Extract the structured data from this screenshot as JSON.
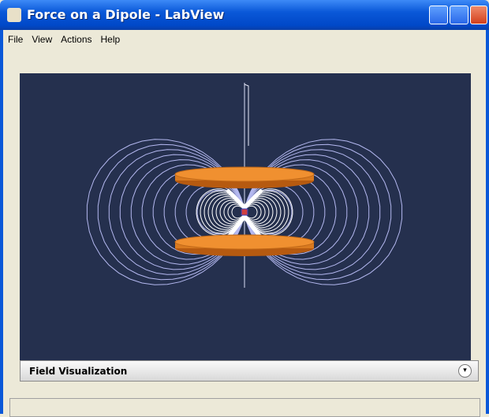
{
  "window": {
    "title": "Force on a Dipole - LabView"
  },
  "menu": [
    "File",
    "View",
    "Actions",
    "Help"
  ],
  "panel": {
    "title": "Field Visualization"
  }
}
